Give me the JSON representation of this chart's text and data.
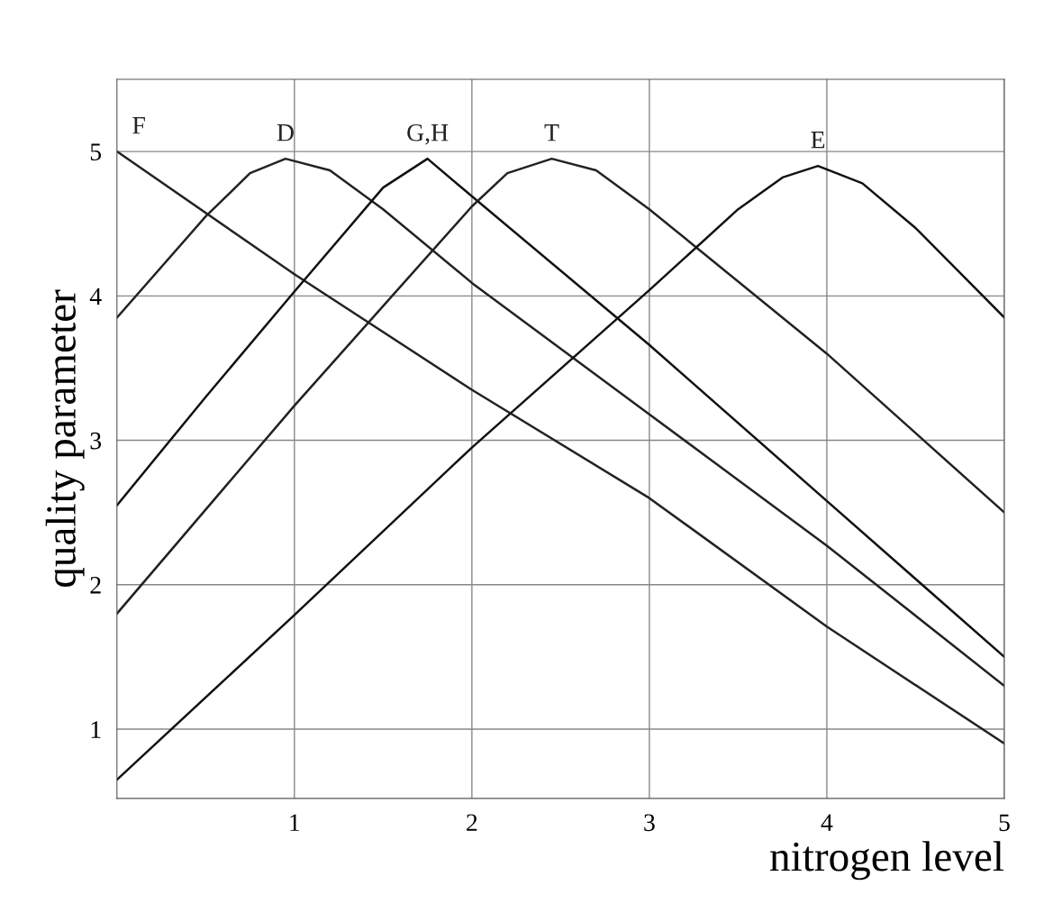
{
  "chart_data": {
    "type": "line",
    "xlabel": "nitrogen level",
    "ylabel": "quality parameter",
    "xlim": [
      0,
      5
    ],
    "ylim": [
      0.52,
      5.5
    ],
    "xticks": [
      1,
      2,
      3,
      4,
      5
    ],
    "yticks": [
      1,
      2,
      3,
      4,
      5
    ],
    "grid": true,
    "marker": "none",
    "line_style": "solid",
    "series": [
      {
        "name": "F",
        "color": "#222222",
        "x": [
          0,
          1,
          2,
          3,
          4,
          5
        ],
        "values": [
          5.0,
          4.15,
          3.35,
          2.6,
          1.71,
          0.9
        ]
      },
      {
        "name": "D",
        "color": "#222222",
        "x": [
          0,
          0.5,
          0.75,
          0.95,
          1.2,
          1.5,
          2,
          3,
          4,
          5
        ],
        "values": [
          3.85,
          4.55,
          4.85,
          4.95,
          4.87,
          4.6,
          4.09,
          3.18,
          2.27,
          1.3
        ]
      },
      {
        "name": "G,H",
        "color": "#111111",
        "x": [
          0,
          0.5,
          1,
          1.5,
          1.75,
          2,
          3,
          4,
          5
        ],
        "values": [
          2.55,
          3.3,
          4.03,
          4.75,
          4.95,
          4.69,
          3.66,
          2.58,
          1.5
        ]
      },
      {
        "name": "T",
        "color": "#222222",
        "x": [
          0,
          1,
          2,
          2.2,
          2.45,
          2.7,
          3,
          4,
          5
        ],
        "values": [
          1.8,
          3.24,
          4.62,
          4.85,
          4.95,
          4.87,
          4.6,
          3.6,
          2.5
        ]
      },
      {
        "name": "E",
        "color": "#111111",
        "x": [
          0,
          1,
          2,
          3,
          3.5,
          3.75,
          3.95,
          4.2,
          4.5,
          5
        ],
        "values": [
          0.65,
          1.79,
          2.95,
          4.04,
          4.6,
          4.82,
          4.9,
          4.78,
          4.47,
          3.85
        ]
      }
    ]
  }
}
